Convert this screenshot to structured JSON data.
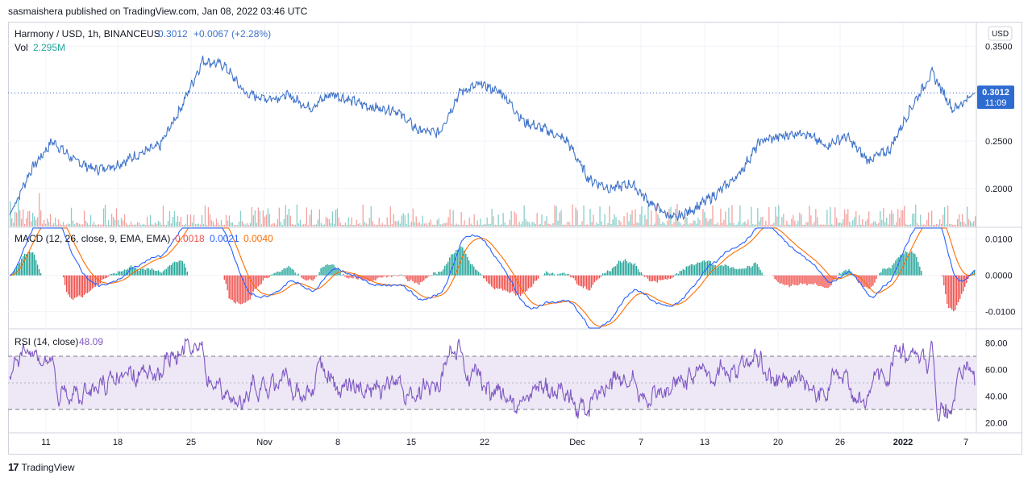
{
  "header": {
    "published": "sasmaishera published on TradingView.com, Jan 08, 2022 03:46 UTC"
  },
  "legend": {
    "symbol": "Harmony / USD, 1h, BINANCEUS",
    "price": "0.3012",
    "change": "+0.0067 (+2.28%)",
    "vol_label": "Vol",
    "vol_value": "2.295M",
    "macd_label": "MACD (12, 26, close, 9, EMA, EMA)",
    "macd_hist": "-0.0018",
    "macd_line": "0.0021",
    "macd_signal": "0.0040",
    "rsi_label": "RSI (14, close)",
    "rsi_value": "48.09"
  },
  "price_scale": {
    "currency": "USD",
    "last_price": "0.3012",
    "countdown": "11:09"
  },
  "footer": {
    "brand": "TradingView"
  },
  "colors": {
    "price_line": "#3f73c9",
    "macd_line": "#2962ff",
    "signal_line": "#ff6d00",
    "hist_up": "#26a69a",
    "hist_down": "#ef5350",
    "rsi_line": "#7e57c2",
    "rsi_band": "#ede7f6",
    "last_price_label": "#2e6bd1"
  },
  "chart_data": [
    {
      "type": "line",
      "title": "Harmony / USD, 1h, BINANCEUS",
      "x_tick_labels": [
        "11",
        "18",
        "25",
        "Nov",
        "8",
        "15",
        "22",
        "Dec",
        "7",
        "13",
        "20",
        "26",
        "2022",
        "7"
      ],
      "y_tick_labels": [
        "0.3500",
        "0.3000",
        "0.2500",
        "0.2000"
      ],
      "ylim": [
        0.16,
        0.375
      ],
      "series": [
        {
          "name": "Harmony / USD",
          "x": [
            "Oct 06",
            "Oct 08",
            "Oct 11",
            "Oct 13",
            "Oct 16",
            "Oct 18",
            "Oct 20",
            "Oct 22",
            "Oct 24",
            "Oct 25",
            "Oct 27",
            "Oct 29",
            "Nov 01",
            "Nov 03",
            "Nov 05",
            "Nov 08",
            "Nov 10",
            "Nov 12",
            "Nov 15",
            "Nov 17",
            "Nov 19",
            "Nov 21",
            "Nov 23",
            "Nov 25",
            "Nov 27",
            "Nov 30",
            "Dec 02",
            "Dec 04",
            "Dec 05",
            "Dec 07",
            "Dec 09",
            "Dec 11",
            "Dec 13",
            "Dec 15",
            "Dec 18",
            "Dec 20",
            "Dec 22",
            "Dec 24",
            "Dec 26",
            "Dec 28",
            "Dec 30",
            "Jan 01",
            "Jan 03",
            "Jan 05",
            "Jan 06",
            "Jan 08"
          ],
          "values": [
            0.172,
            0.22,
            0.25,
            0.23,
            0.22,
            0.225,
            0.236,
            0.245,
            0.286,
            0.335,
            0.33,
            0.3,
            0.295,
            0.298,
            0.285,
            0.3,
            0.292,
            0.285,
            0.283,
            0.262,
            0.258,
            0.302,
            0.31,
            0.3,
            0.27,
            0.262,
            0.25,
            0.21,
            0.2,
            0.205,
            0.182,
            0.168,
            0.18,
            0.195,
            0.215,
            0.25,
            0.255,
            0.26,
            0.245,
            0.255,
            0.23,
            0.24,
            0.284,
            0.322,
            0.283,
            0.301
          ]
        }
      ],
      "volume": {
        "name": "Vol",
        "last": "2.295M"
      }
    },
    {
      "type": "bar",
      "title": "MACD (12, 26, close, 9, EMA, EMA)",
      "y_tick_labels": [
        "0.0100",
        "0.0000",
        "-0.0100"
      ],
      "ylim": [
        -0.0145,
        0.013
      ],
      "series": [
        {
          "name": "Histogram",
          "last": -0.0018
        },
        {
          "name": "MACD",
          "last": 0.0021
        },
        {
          "name": "Signal",
          "last": 0.004
        }
      ]
    },
    {
      "type": "line",
      "title": "RSI (14, close)",
      "y_tick_labels": [
        "80.00",
        "60.00",
        "40.00",
        "20.00"
      ],
      "ylim": [
        13,
        90
      ],
      "bands": [
        30,
        70
      ],
      "series": [
        {
          "name": "RSI",
          "last": 48.09
        }
      ]
    }
  ]
}
